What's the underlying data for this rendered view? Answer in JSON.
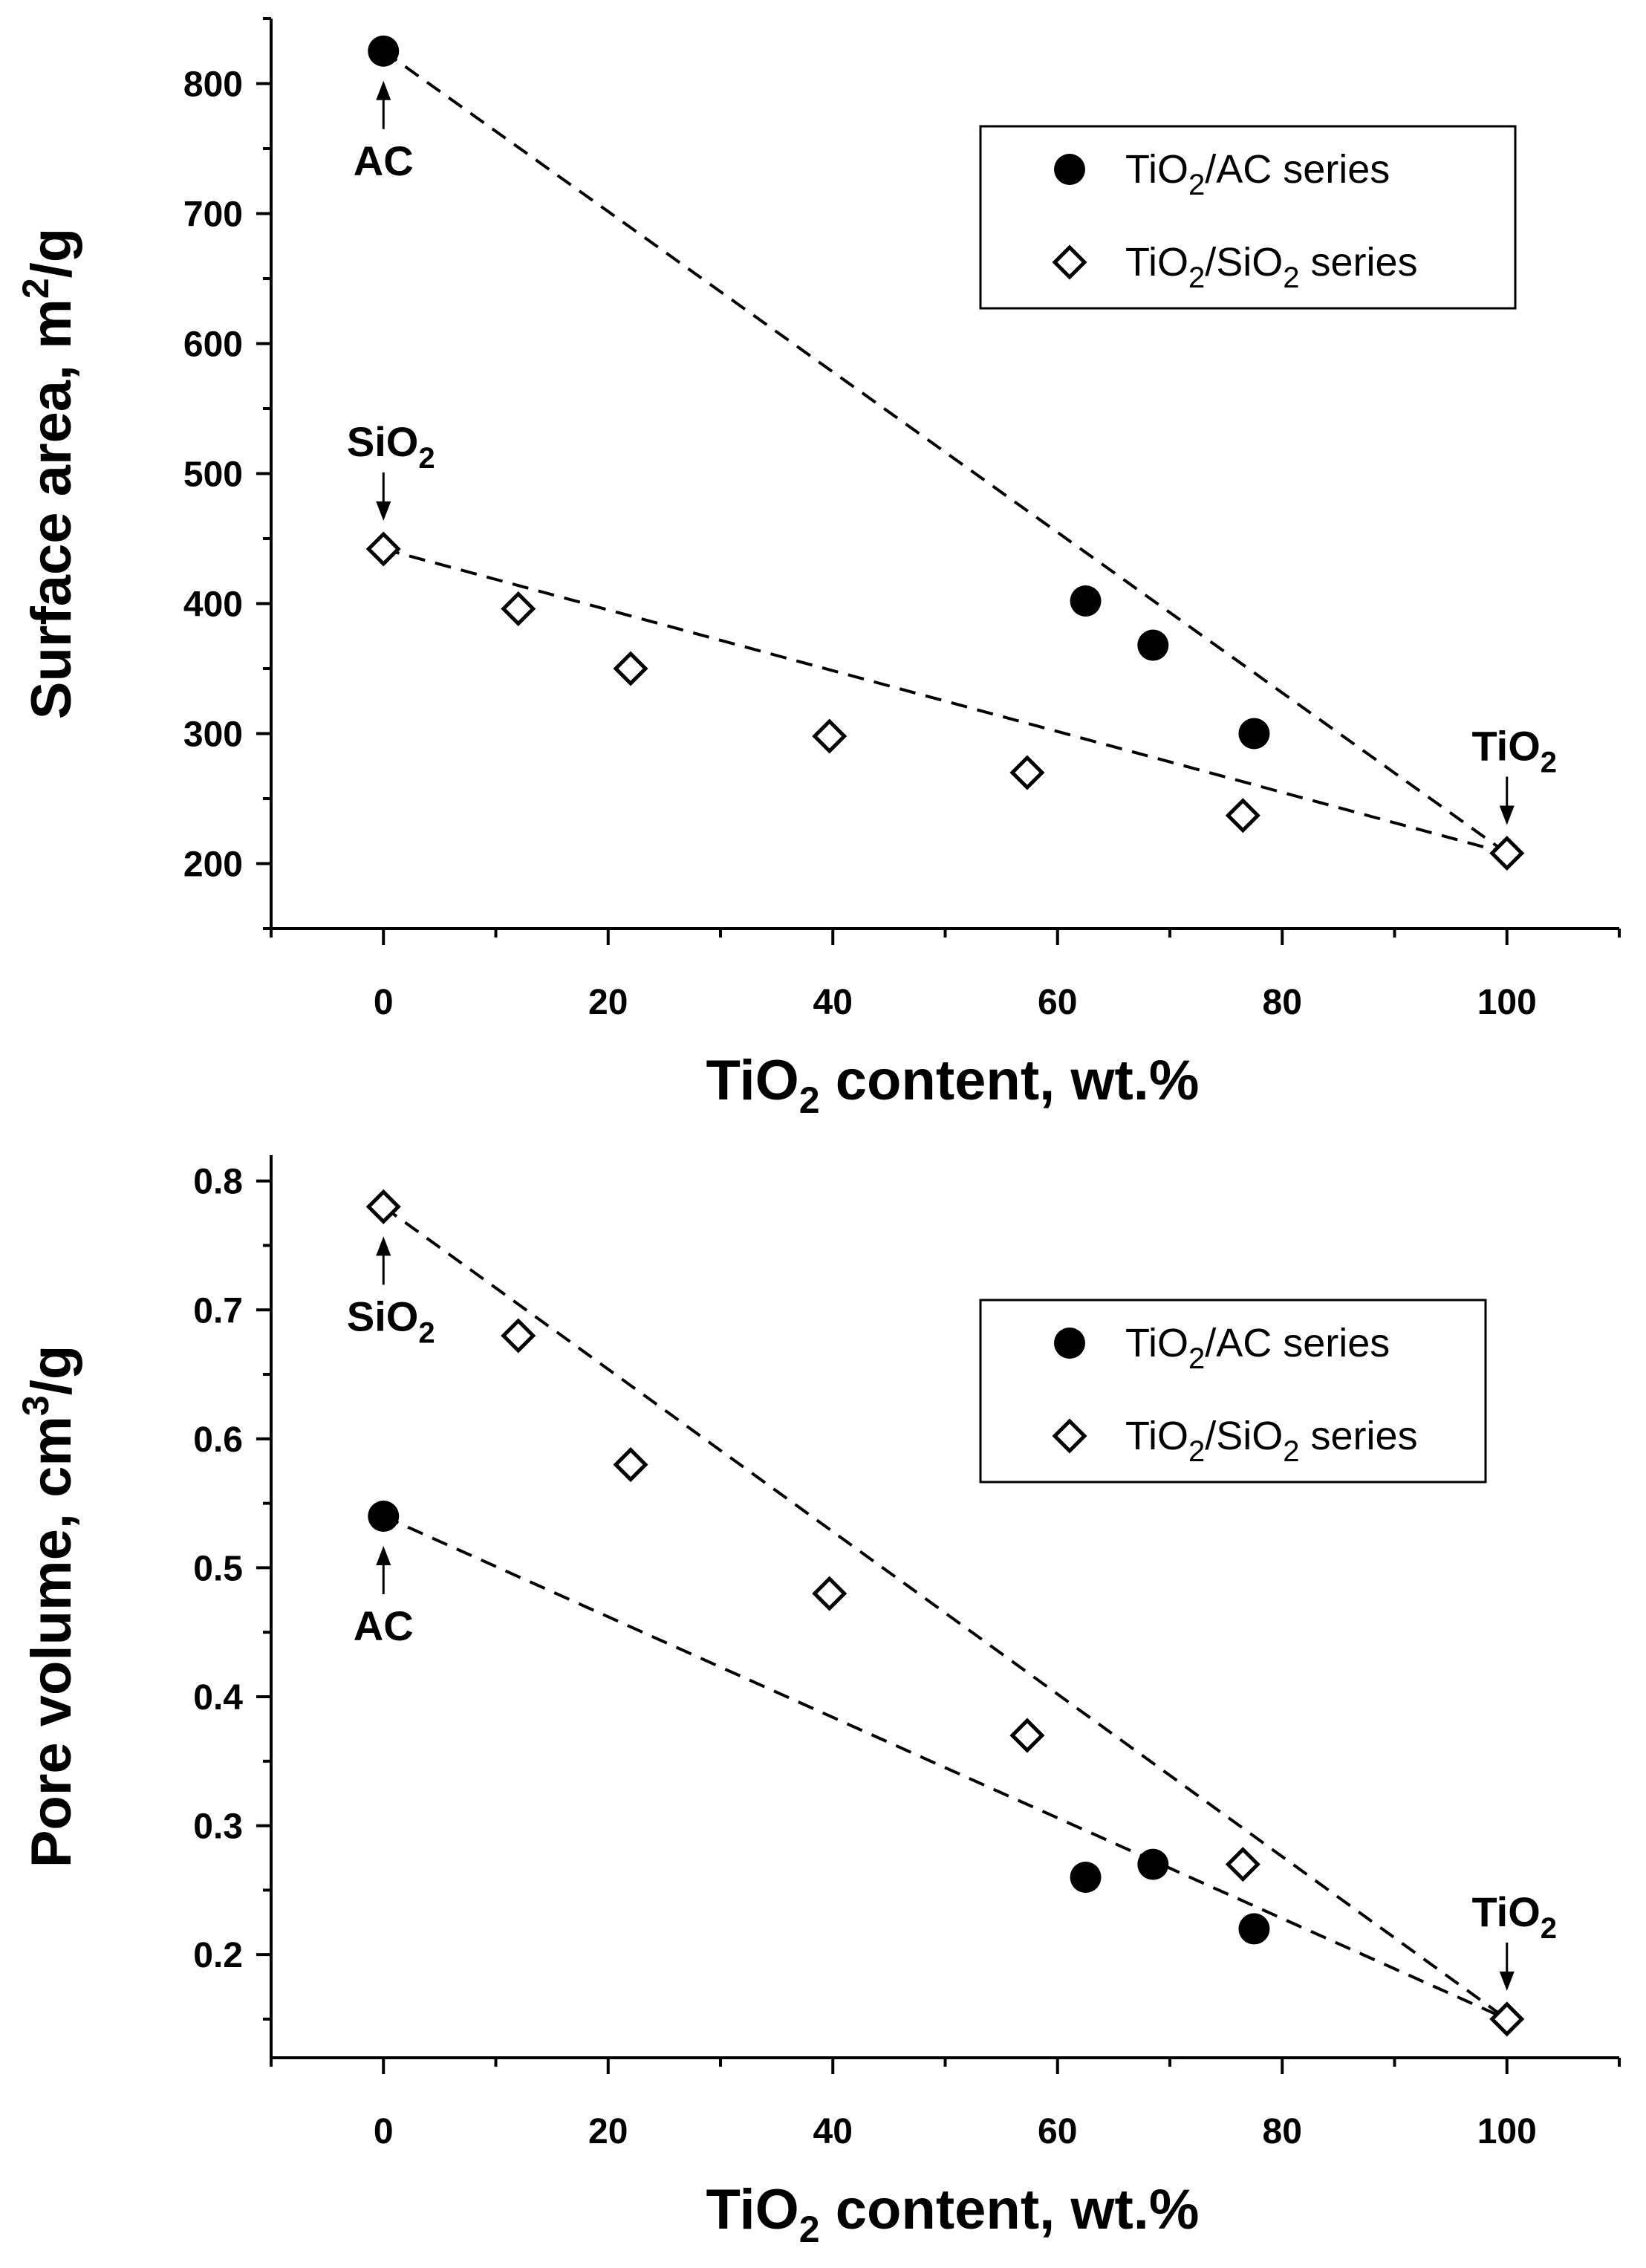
{
  "chart_data": [
    {
      "type": "scatter",
      "xlabel": "TiO2 content, wt.%",
      "xlabel_parts": {
        "pre": "TiO",
        "sub": "2",
        "post": " content, wt.%"
      },
      "ylabel": "Surface area, m2/g",
      "ylabel_parts": {
        "pre": "Surface area, m",
        "sup": "2",
        "post": "/g"
      },
      "xlim": [
        -10,
        110
      ],
      "ylim": [
        150,
        850
      ],
      "xticks": [
        0,
        20,
        40,
        60,
        80,
        100
      ],
      "xtick_labels": [
        "0",
        "20",
        "40",
        "60",
        "80",
        "100"
      ],
      "yticks": [
        200,
        300,
        400,
        500,
        600,
        700,
        800
      ],
      "ytick_labels": [
        "200",
        "300",
        "400",
        "500",
        "600",
        "700",
        "800"
      ],
      "legend_position": "top-right",
      "series": [
        {
          "name": "TiO2/AC series",
          "name_parts": {
            "pre": "TiO",
            "sub": "2",
            "post": "/AC series"
          },
          "marker": "filled-circle",
          "x": [
            0,
            62.5,
            68.5,
            77.5
          ],
          "y": [
            825,
            402,
            368,
            300
          ]
        },
        {
          "name": "TiO2/SiO2 series",
          "name_parts": {
            "pre": "TiO",
            "sub": "2",
            "mid": "/SiO",
            "sub2": "2",
            "post": " series"
          },
          "marker": "open-diamond",
          "x": [
            0,
            12,
            22,
            39.7,
            57.3,
            76.5,
            100
          ],
          "y": [
            442,
            396,
            350,
            298,
            270,
            237,
            208
          ]
        }
      ],
      "fit_lines": [
        {
          "series": "TiO2/AC series",
          "x": [
            0,
            100
          ],
          "y": [
            825,
            208
          ]
        },
        {
          "series": "TiO2/SiO2 series",
          "x": [
            0,
            100
          ],
          "y": [
            442,
            208
          ]
        }
      ],
      "annotations": [
        {
          "text": "AC",
          "base": "AC",
          "sub": "",
          "x": 0,
          "y": 825,
          "label_side": "below"
        },
        {
          "text": "SiO2",
          "base": "SiO",
          "sub": "2",
          "x": 0,
          "y": 442,
          "label_side": "above"
        },
        {
          "text": "TiO2",
          "base": "TiO",
          "sub": "2",
          "x": 100,
          "y": 208,
          "label_side": "above"
        }
      ]
    },
    {
      "type": "scatter",
      "xlabel": "TiO2 content, wt.%",
      "xlabel_parts": {
        "pre": "TiO",
        "sub": "2",
        "post": " content, wt.%"
      },
      "ylabel": "Pore volume, cm3/g",
      "ylabel_parts": {
        "pre": "Pore volume, cm",
        "sup": "3",
        "post": "/g"
      },
      "xlim": [
        -10,
        110
      ],
      "ylim": [
        0.12,
        0.82
      ],
      "xticks": [
        0,
        20,
        40,
        60,
        80,
        100
      ],
      "xtick_labels": [
        "0",
        "20",
        "40",
        "60",
        "80",
        "100"
      ],
      "yticks": [
        0.2,
        0.3,
        0.4,
        0.5,
        0.6,
        0.7,
        0.8
      ],
      "ytick_labels": [
        "0.2",
        "0.3",
        "0.4",
        "0.5",
        "0.6",
        "0.7",
        "0.8"
      ],
      "legend_position": "top-right",
      "series": [
        {
          "name": "TiO2/AC series",
          "name_parts": {
            "pre": "TiO",
            "sub": "2",
            "post": "/AC series"
          },
          "marker": "filled-circle",
          "x": [
            0,
            62.5,
            68.5,
            77.5
          ],
          "y": [
            0.54,
            0.26,
            0.27,
            0.22
          ]
        },
        {
          "name": "TiO2/SiO2 series",
          "name_parts": {
            "pre": "TiO",
            "sub": "2",
            "mid": "/SiO",
            "sub2": "2",
            "post": " series"
          },
          "marker": "open-diamond",
          "x": [
            0,
            12,
            22,
            39.7,
            57.3,
            76.5,
            100
          ],
          "y": [
            0.78,
            0.68,
            0.58,
            0.48,
            0.37,
            0.27,
            0.15
          ]
        }
      ],
      "fit_lines": [
        {
          "series": "TiO2/AC series",
          "x": [
            0,
            100
          ],
          "y": [
            0.54,
            0.15
          ]
        },
        {
          "series": "TiO2/SiO2 series",
          "x": [
            0,
            100
          ],
          "y": [
            0.78,
            0.15
          ]
        }
      ],
      "annotations": [
        {
          "text": "SiO2",
          "base": "SiO",
          "sub": "2",
          "x": 0,
          "y": 0.78,
          "label_side": "below"
        },
        {
          "text": "AC",
          "base": "AC",
          "sub": "",
          "x": 0,
          "y": 0.54,
          "label_side": "below"
        },
        {
          "text": "TiO2",
          "base": "TiO",
          "sub": "2",
          "x": 100,
          "y": 0.15,
          "label_side": "above"
        }
      ]
    }
  ]
}
